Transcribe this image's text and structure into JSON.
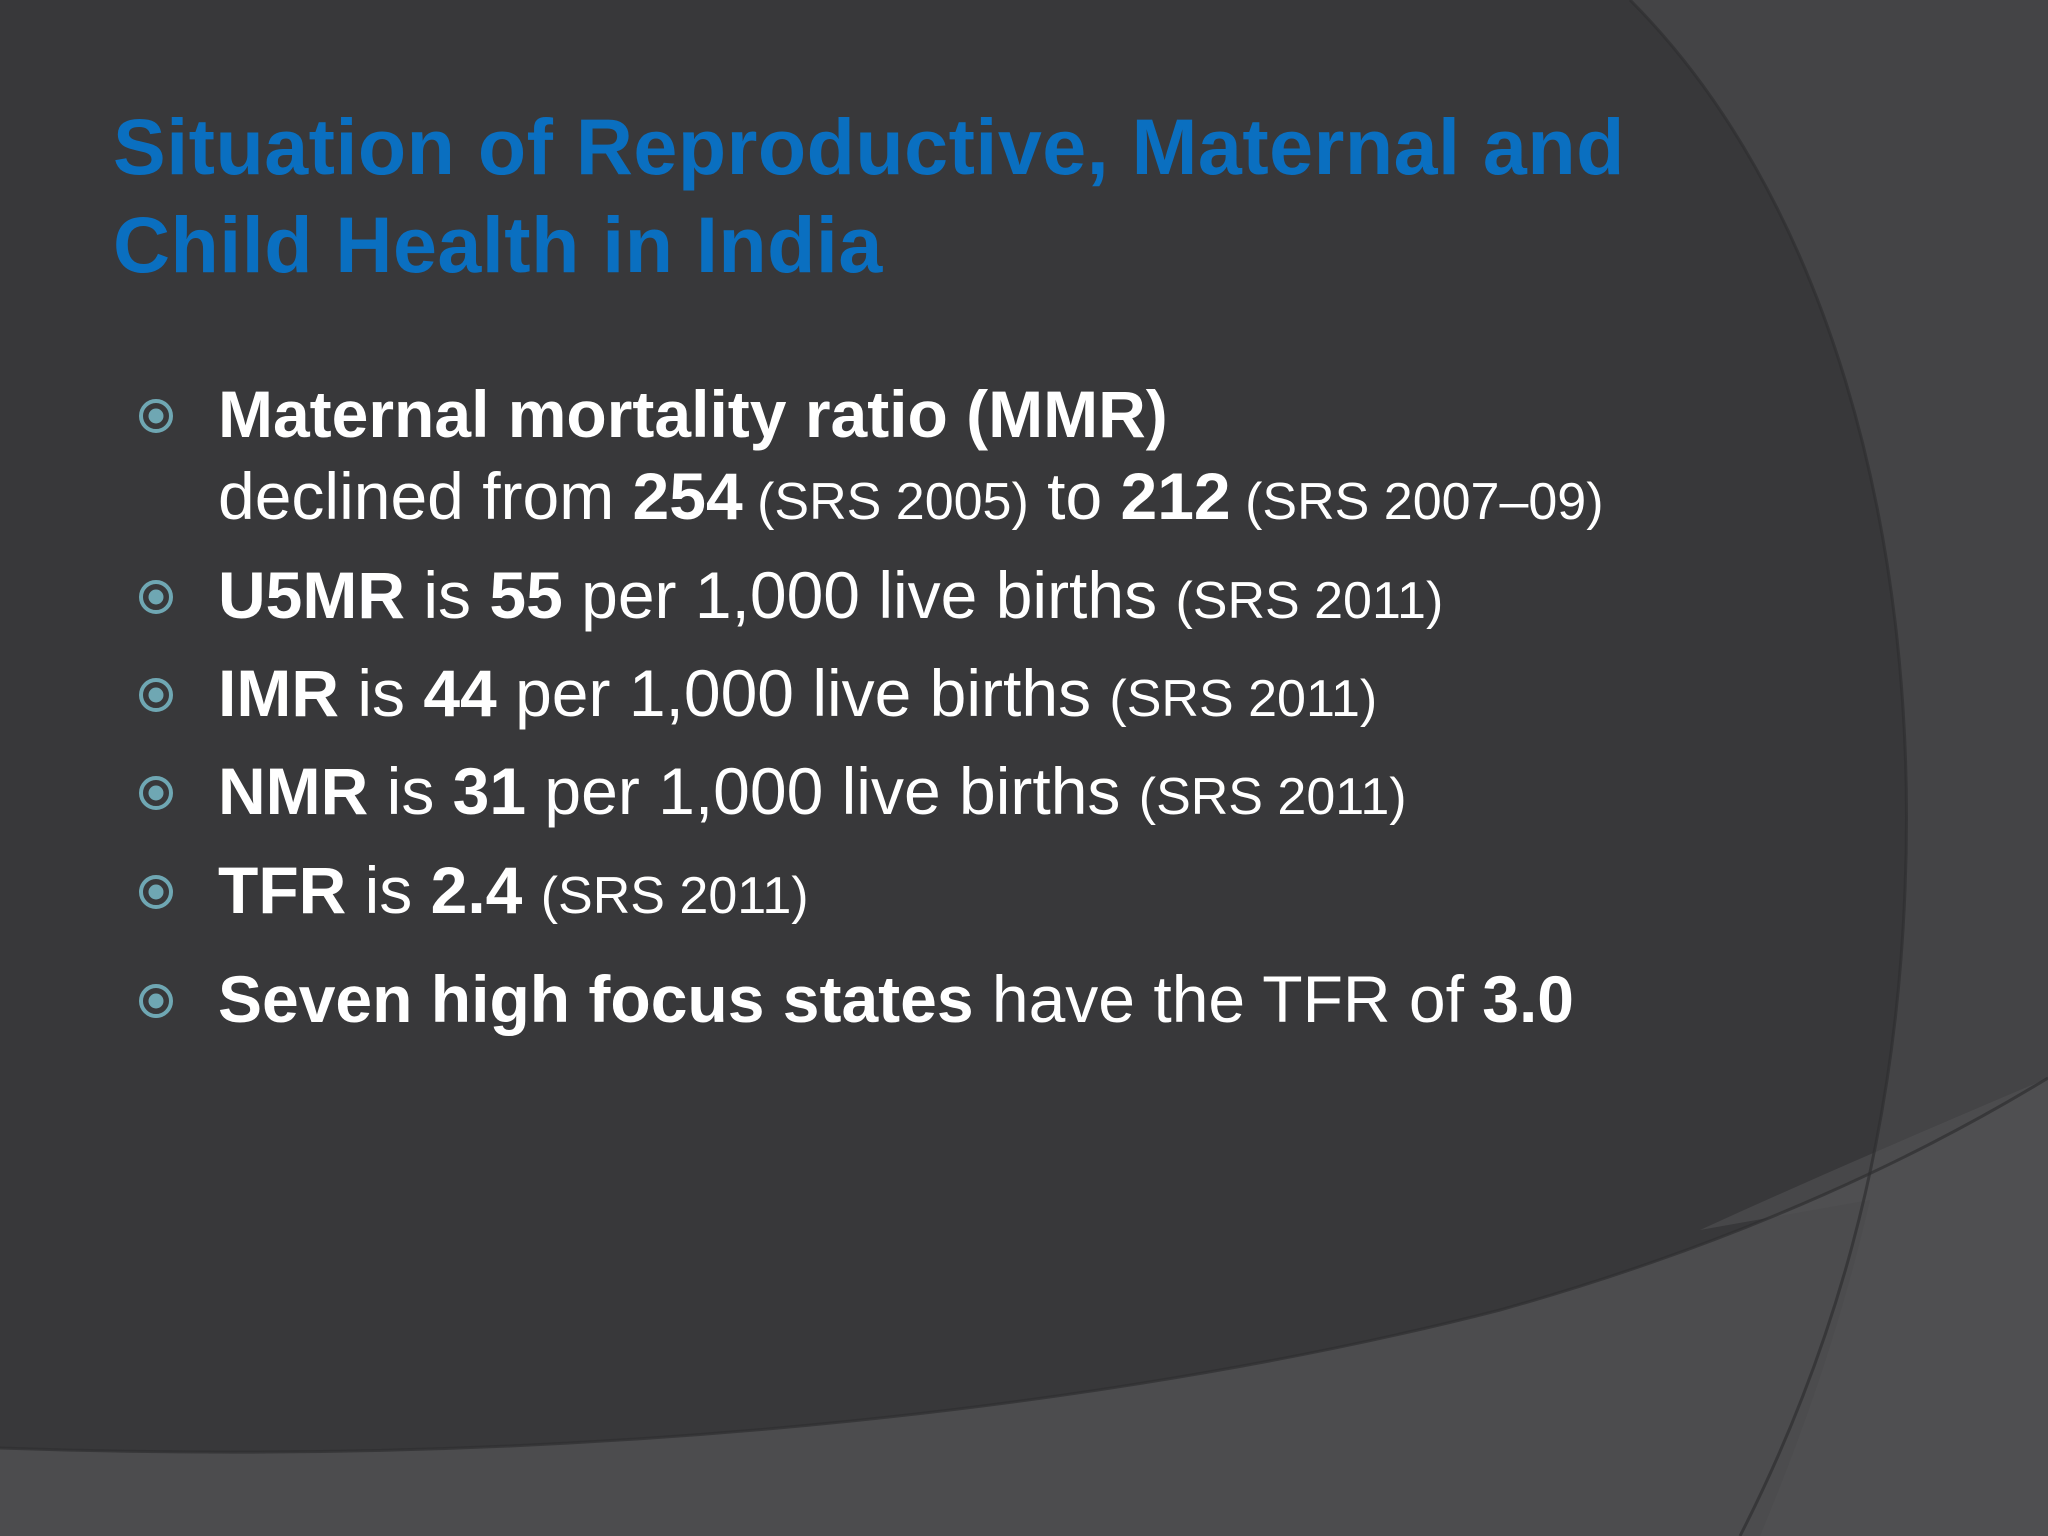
{
  "slide": {
    "title_line1": "Situation of Reproductive, Maternal and",
    "title_line2": "Child Health in India",
    "colors": {
      "background": "#38383a",
      "title": "#0a6fc0",
      "text": "#ffffff",
      "bullet_icon": "#6fa7b3"
    },
    "bullet_icon_name": "circled-dot-bullet-icon",
    "bullets": [
      {
        "line1_bold": "Maternal mortality ratio (MMR)",
        "line2_text1": "declined from ",
        "line2_bold1": "254",
        "line2_src1": " (SRS 2005)",
        "line2_text2": " to ",
        "line2_bold2": "212",
        "line2_src2": " (SRS 2007–09)"
      },
      {
        "bold1": "U5MR",
        "text1": " is ",
        "bold2": "55",
        "text2": " per 1,000 live births ",
        "src": "(SRS 2011)"
      },
      {
        "bold1": "IMR",
        "text1": " is ",
        "bold2": "44",
        "text2": " per 1,000 live births ",
        "src": "(SRS 2011)"
      },
      {
        "bold1": "NMR",
        "text1": " is ",
        "bold2": "31",
        "text2": " per 1,000 live births ",
        "src": "(SRS 2011)"
      },
      {
        "bold1": "TFR",
        "text1": " is ",
        "bold2": "2.4",
        "text2": " ",
        "src": "(SRS 2011)"
      },
      {
        "bold1": "Seven high focus states",
        "text1": " have the TFR of ",
        "bold2": "3.0"
      }
    ]
  }
}
